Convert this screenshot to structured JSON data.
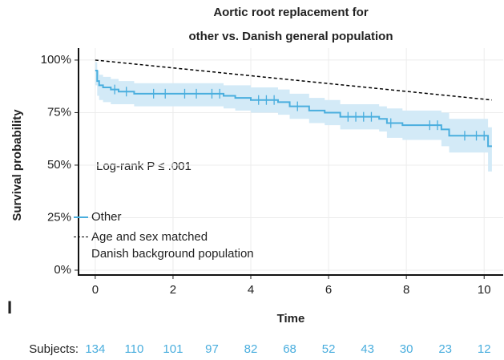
{
  "chart_data": {
    "type": "survival",
    "title": [
      "Aortic root replacement for",
      "other vs. Danish general population"
    ],
    "x_label": "Time",
    "y_label": "Survival probability",
    "annotation": "Log-rank P ≤ .001",
    "panel_label": "I",
    "xlim": [
      -0.43,
      10.49
    ],
    "ylim": [
      -2.3,
      105.7
    ],
    "xticks": [
      0,
      2,
      4,
      6,
      8,
      10
    ],
    "yticks": [
      {
        "value": 0,
        "label": "0%"
      },
      {
        "value": 25,
        "label": "25%"
      },
      {
        "value": 50,
        "label": "50%"
      },
      {
        "value": 75,
        "label": "75%"
      },
      {
        "value": 100,
        "label": "100%"
      }
    ],
    "grid": true,
    "series": [
      {
        "name": "Other",
        "color": "#4aaede",
        "band_color": "#d3eaf7",
        "x": [
          0,
          0.05,
          0.1,
          0.2,
          0.4,
          0.6,
          1.0,
          3.3,
          3.6,
          4.0,
          4.7,
          5.0,
          5.5,
          5.9,
          6.3,
          7.3,
          7.5,
          7.9,
          8.9,
          9.1,
          10.1,
          10.2
        ],
        "values": [
          95,
          90,
          88,
          87,
          86,
          85,
          84,
          83,
          82,
          81,
          80,
          78,
          76,
          75,
          73,
          72,
          70,
          69,
          67,
          64,
          59,
          59
        ],
        "lower": [
          88,
          83,
          81,
          80,
          79,
          79,
          78,
          77,
          76,
          75,
          74,
          72,
          70,
          69,
          67,
          66,
          63,
          62,
          59,
          56,
          47,
          47
        ],
        "upper": [
          99,
          95,
          93,
          92,
          91,
          90,
          89,
          88,
          88,
          87,
          86,
          84,
          82,
          81,
          79,
          78,
          77,
          76,
          75,
          72,
          68,
          68
        ],
        "censored": {
          "x": [
            0.5,
            0.8,
            1.5,
            1.8,
            2.3,
            2.6,
            3.0,
            3.2,
            4.2,
            4.4,
            4.6,
            5.2,
            6.5,
            6.7,
            6.9,
            7.1,
            7.6,
            8.6,
            8.8,
            9.5,
            9.8,
            10.0
          ],
          "values": [
            86,
            85,
            84,
            84,
            84,
            84,
            84,
            84,
            81,
            81,
            81,
            78,
            73,
            73,
            73,
            73,
            70,
            69,
            69,
            64,
            64,
            64
          ]
        }
      },
      {
        "name": "Age and sex matched\nDanish background population",
        "color": "#000000",
        "dashed": true,
        "x": [
          0,
          10.2
        ],
        "values": [
          100,
          81
        ]
      }
    ],
    "risk_table": {
      "label": "Subjects:",
      "color": "#4aaede",
      "x": [
        0,
        1,
        2,
        3,
        4,
        5,
        6,
        7,
        8,
        9,
        10
      ],
      "counts": [
        134,
        110,
        101,
        97,
        82,
        68,
        52,
        43,
        30,
        23,
        12
      ]
    }
  }
}
